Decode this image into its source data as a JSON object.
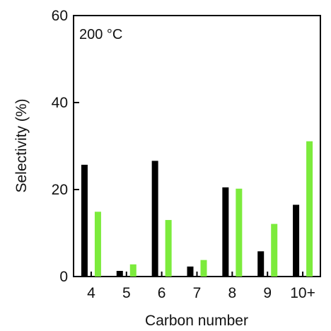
{
  "chart_data": {
    "type": "bar",
    "annotation": "200 °C",
    "xlabel": "Carbon number",
    "ylabel": "Selectivity (%)",
    "categories": [
      "4",
      "5",
      "6",
      "7",
      "8",
      "9",
      "10+"
    ],
    "ylim": [
      0,
      60
    ],
    "yticks": [
      0,
      20,
      40,
      60
    ],
    "series": [
      {
        "color": "#000000",
        "values": [
          25.7,
          1.3,
          26.6,
          2.3,
          20.5,
          5.8,
          16.5
        ]
      },
      {
        "color": "#7CEB3C",
        "values": [
          14.9,
          2.8,
          13.0,
          3.8,
          20.2,
          12.1,
          31.1
        ]
      }
    ],
    "grid": false,
    "legend": "none"
  }
}
